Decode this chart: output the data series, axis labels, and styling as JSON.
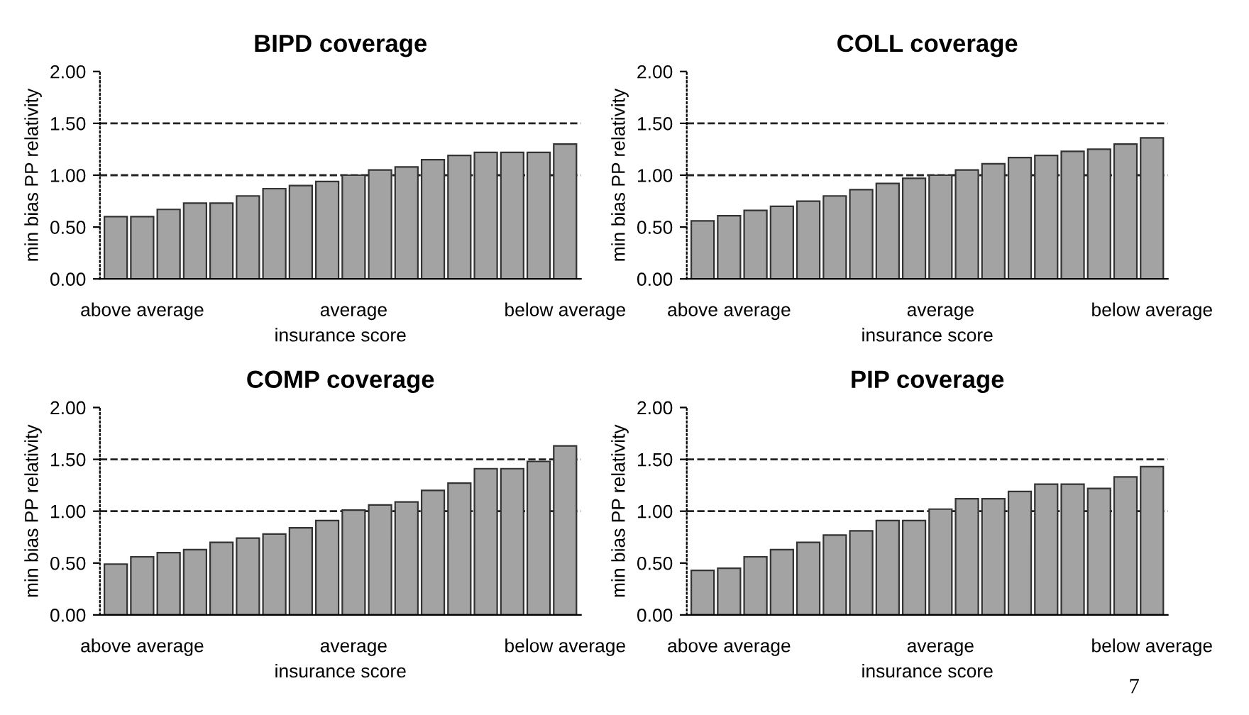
{
  "chart_data": [
    {
      "type": "bar",
      "title": "BIPD coverage",
      "xlabel": "insurance score",
      "ylabel": "min bias PP relativity",
      "categories": [
        null,
        "above average",
        null,
        null,
        null,
        null,
        null,
        null,
        null,
        "average",
        null,
        null,
        null,
        null,
        null,
        null,
        null,
        "below average"
      ],
      "values": [
        0.6,
        0.6,
        0.67,
        0.73,
        0.73,
        0.8,
        0.87,
        0.9,
        0.94,
        1.0,
        1.05,
        1.08,
        1.15,
        1.19,
        1.22,
        1.22,
        1.22,
        1.3
      ],
      "color": "#a3a3a3",
      "ylim": [
        0,
        2
      ],
      "yticks": [
        {
          "value": 0,
          "label": "0.00"
        },
        {
          "value": 0.5,
          "label": "0.50"
        },
        {
          "value": 1,
          "label": "1.00"
        },
        {
          "value": 1.5,
          "label": "1.50"
        },
        {
          "value": 2,
          "label": "2.00"
        }
      ],
      "ref_lines": [
        {
          "axis": "y",
          "value": 1.0,
          "line_style": "dashed"
        },
        {
          "axis": "y",
          "value": 1.5,
          "line_style": "dashed"
        }
      ]
    },
    {
      "type": "bar",
      "title": "COLL coverage",
      "xlabel": "insurance score",
      "ylabel": "min bias PP relativity",
      "categories": [
        null,
        "above average",
        null,
        null,
        null,
        null,
        null,
        null,
        null,
        "average",
        null,
        null,
        null,
        null,
        null,
        null,
        null,
        "below average"
      ],
      "values": [
        0.56,
        0.61,
        0.66,
        0.7,
        0.75,
        0.8,
        0.86,
        0.92,
        0.97,
        1.0,
        1.05,
        1.11,
        1.17,
        1.19,
        1.23,
        1.25,
        1.3,
        1.36
      ],
      "color": "#a3a3a3",
      "ylim": [
        0,
        2
      ],
      "yticks": [
        {
          "value": 0,
          "label": "0.00"
        },
        {
          "value": 0.5,
          "label": "0.50"
        },
        {
          "value": 1,
          "label": "1.00"
        },
        {
          "value": 1.5,
          "label": "1.50"
        },
        {
          "value": 2,
          "label": "2.00"
        }
      ],
      "ref_lines": [
        {
          "axis": "y",
          "value": 1.0,
          "line_style": "dashed"
        },
        {
          "axis": "y",
          "value": 1.5,
          "line_style": "dashed"
        }
      ]
    },
    {
      "type": "bar",
      "title": "COMP coverage",
      "xlabel": "insurance score",
      "ylabel": "min bias PP relativity",
      "categories": [
        null,
        "above average",
        null,
        null,
        null,
        null,
        null,
        null,
        null,
        "average",
        null,
        null,
        null,
        null,
        null,
        null,
        null,
        "below average"
      ],
      "values": [
        0.49,
        0.56,
        0.6,
        0.63,
        0.7,
        0.74,
        0.78,
        0.84,
        0.91,
        1.01,
        1.06,
        1.09,
        1.2,
        1.27,
        1.41,
        1.41,
        1.48,
        1.63
      ],
      "color": "#a3a3a3",
      "ylim": [
        0,
        2
      ],
      "yticks": [
        {
          "value": 0,
          "label": "0.00"
        },
        {
          "value": 0.5,
          "label": "0.50"
        },
        {
          "value": 1,
          "label": "1.00"
        },
        {
          "value": 1.5,
          "label": "1.50"
        },
        {
          "value": 2,
          "label": "2.00"
        }
      ],
      "ref_lines": [
        {
          "axis": "y",
          "value": 1.0,
          "line_style": "dashed"
        },
        {
          "axis": "y",
          "value": 1.5,
          "line_style": "dashed"
        }
      ]
    },
    {
      "type": "bar",
      "title": "PIP coverage",
      "xlabel": "insurance score",
      "ylabel": "min bias PP relativity",
      "categories": [
        null,
        "above average",
        null,
        null,
        null,
        null,
        null,
        null,
        null,
        "average",
        null,
        null,
        null,
        null,
        null,
        null,
        null,
        "below average"
      ],
      "values": [
        0.43,
        0.45,
        0.56,
        0.63,
        0.7,
        0.77,
        0.81,
        0.91,
        0.91,
        1.02,
        1.12,
        1.12,
        1.19,
        1.26,
        1.26,
        1.22,
        1.33,
        1.43
      ],
      "color": "#a3a3a3",
      "ylim": [
        0,
        2
      ],
      "yticks": [
        {
          "value": 0,
          "label": "0.00"
        },
        {
          "value": 0.5,
          "label": "0.50"
        },
        {
          "value": 1,
          "label": "1.00"
        },
        {
          "value": 1.5,
          "label": "1.50"
        },
        {
          "value": 2,
          "label": "2.00"
        }
      ],
      "ref_lines": [
        {
          "axis": "y",
          "value": 1.0,
          "line_style": "dashed"
        },
        {
          "axis": "y",
          "value": 1.5,
          "line_style": "dashed"
        }
      ],
      "annotations": [
        "7"
      ]
    }
  ]
}
